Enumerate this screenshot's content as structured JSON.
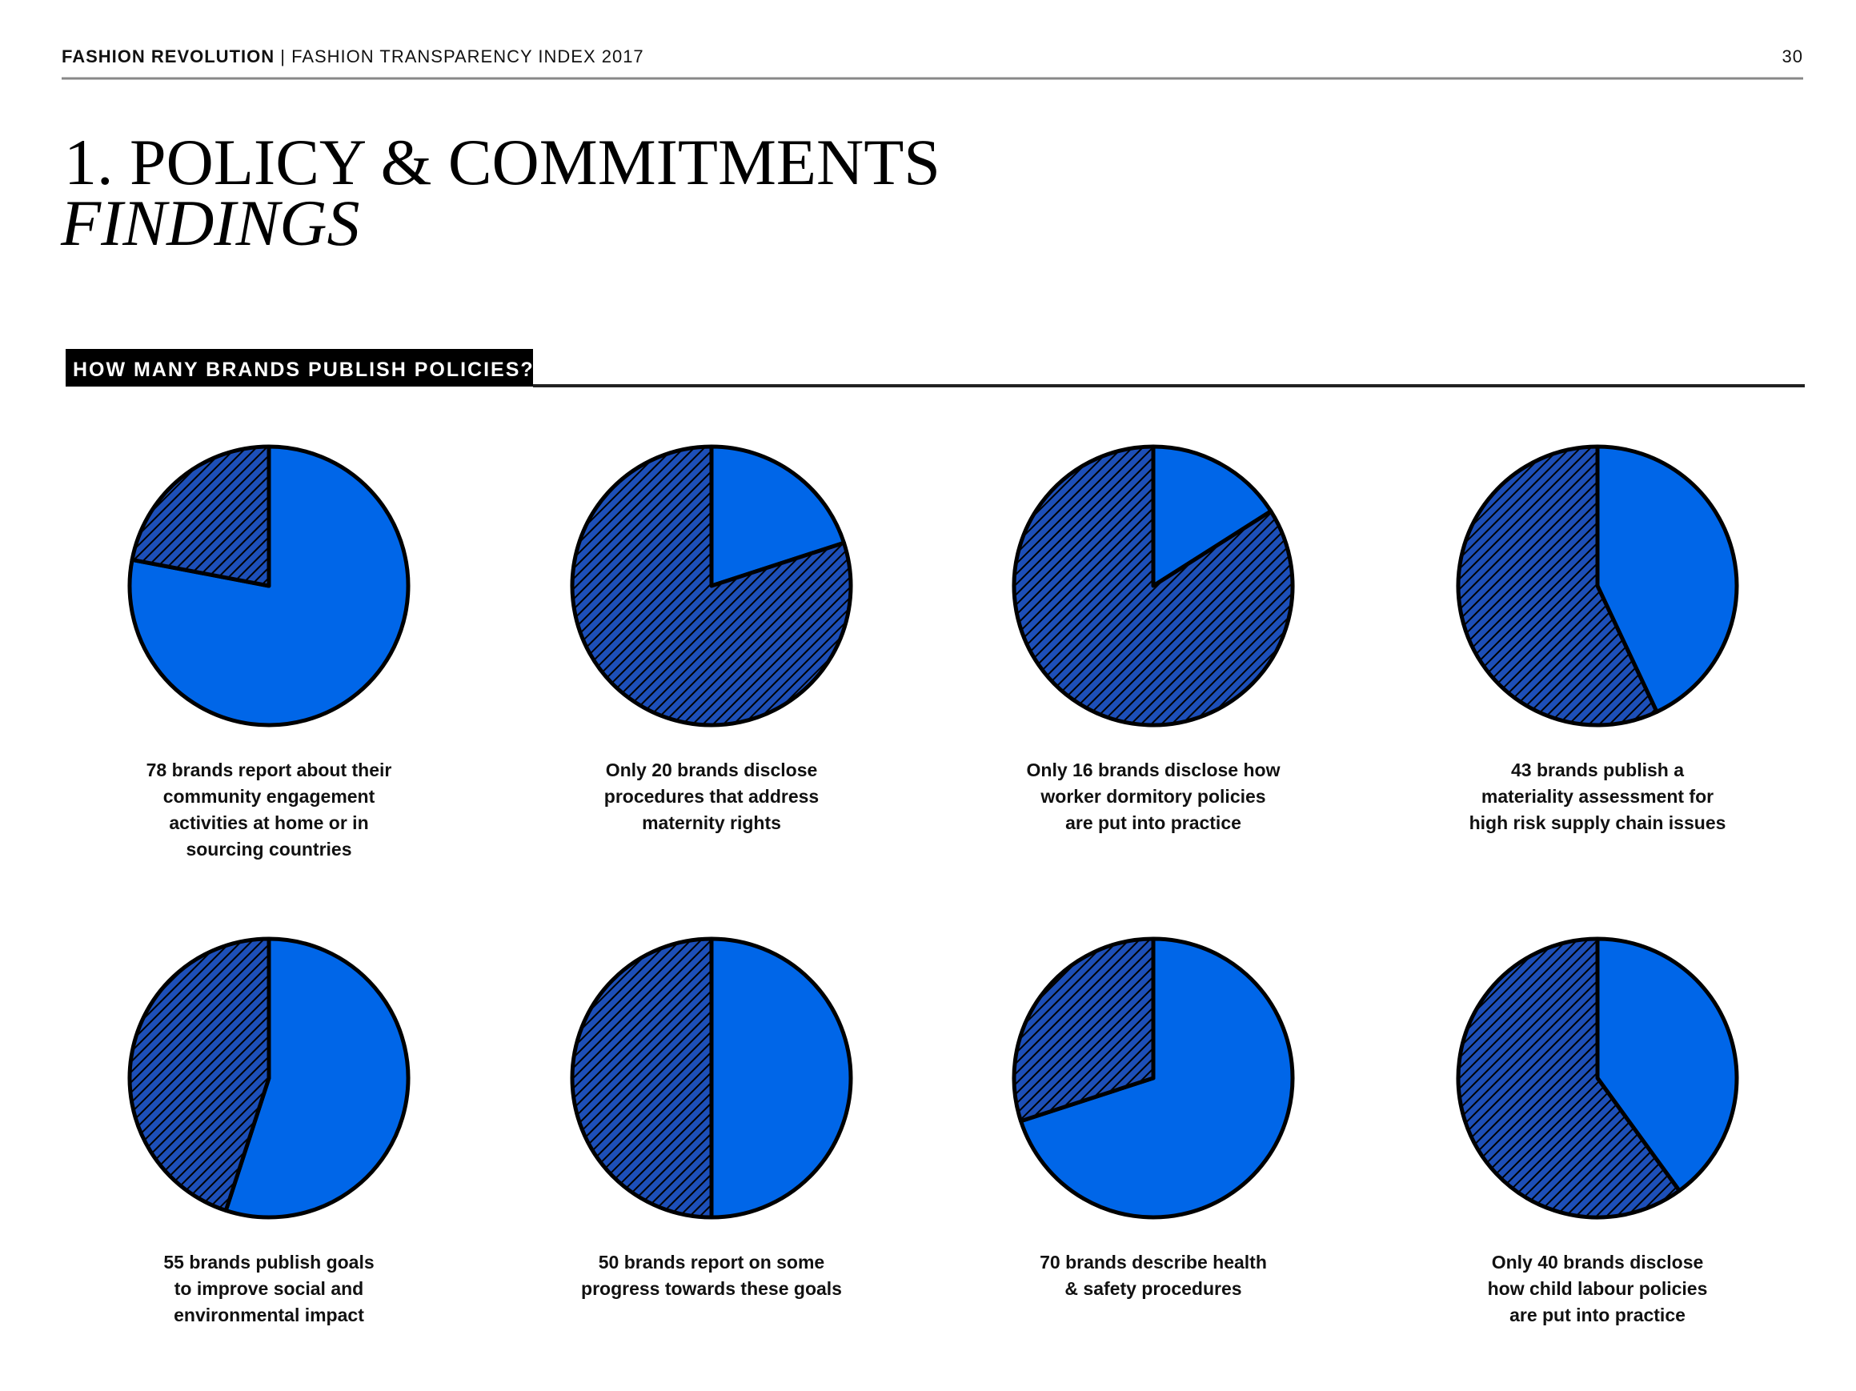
{
  "header": {
    "brand": "FASHION REVOLUTION",
    "separator": "|",
    "publication": "FASHION TRANSPARENCY INDEX 2017",
    "page": "30"
  },
  "title": "1. POLICY & COMMITMENTS",
  "subtitle": "FINDINGS",
  "section_heading": "HOW MANY BRANDS PUBLISH POLICIES?",
  "chart_data": [
    {
      "type": "pie",
      "values": [
        78,
        22
      ],
      "colors": [
        "#0066e8",
        "#1d4fb8"
      ],
      "hatched": [
        false,
        true
      ],
      "caption": [
        "78 brands report about their",
        "community engagement",
        "activities at home or in",
        "sourcing countries"
      ]
    },
    {
      "type": "pie",
      "values": [
        20,
        80
      ],
      "colors": [
        "#0066e8",
        "#1d4fb8"
      ],
      "hatched": [
        false,
        true
      ],
      "caption": [
        "Only 20 brands disclose",
        "procedures that address",
        "maternity rights"
      ]
    },
    {
      "type": "pie",
      "values": [
        16,
        84
      ],
      "colors": [
        "#0066e8",
        "#1d4fb8"
      ],
      "hatched": [
        false,
        true
      ],
      "caption": [
        "Only 16 brands disclose how",
        "worker dormitory policies",
        "are put into practice"
      ]
    },
    {
      "type": "pie",
      "values": [
        43,
        57
      ],
      "colors": [
        "#0066e8",
        "#1d4fb8"
      ],
      "hatched": [
        false,
        true
      ],
      "caption": [
        "43 brands publish a",
        "materiality assessment for",
        "high risk supply chain issues"
      ]
    },
    {
      "type": "pie",
      "values": [
        55,
        45
      ],
      "colors": [
        "#0066e8",
        "#1d4fb8"
      ],
      "hatched": [
        false,
        true
      ],
      "caption": [
        "55 brands publish goals",
        "to improve social and",
        "environmental impact"
      ]
    },
    {
      "type": "pie",
      "values": [
        50,
        50
      ],
      "colors": [
        "#0066e8",
        "#1d4fb8"
      ],
      "hatched": [
        false,
        true
      ],
      "caption": [
        "50 brands report on some",
        "progress towards these goals"
      ]
    },
    {
      "type": "pie",
      "values": [
        70,
        30
      ],
      "colors": [
        "#0066e8",
        "#1d4fb8"
      ],
      "hatched": [
        false,
        true
      ],
      "caption": [
        "70 brands describe health",
        "& safety procedures"
      ]
    },
    {
      "type": "pie",
      "values": [
        40,
        60
      ],
      "colors": [
        "#0066e8",
        "#1d4fb8"
      ],
      "hatched": [
        false,
        true
      ],
      "caption": [
        "Only 40 brands disclose",
        "how child labour policies",
        "are put into practice"
      ]
    }
  ]
}
